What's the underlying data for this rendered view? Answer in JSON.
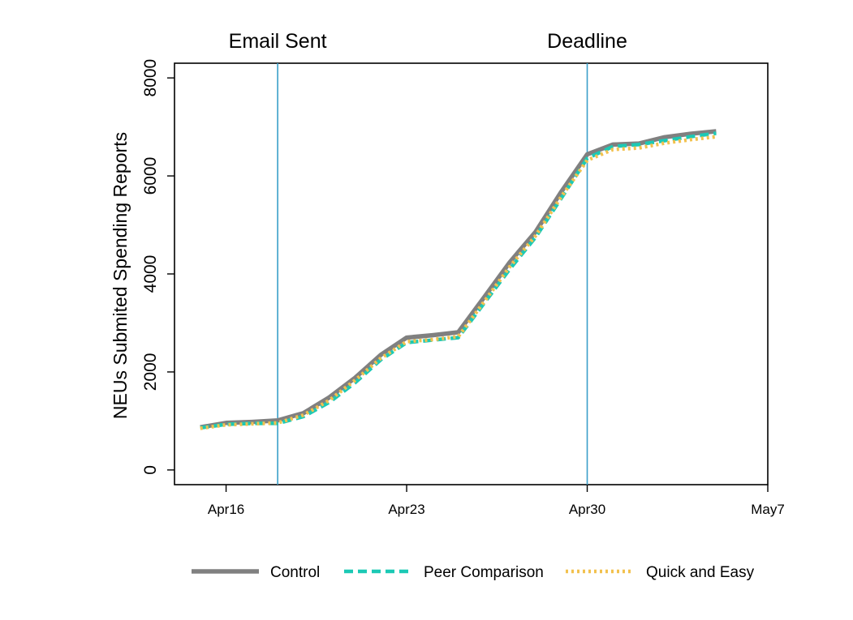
{
  "chart_data": {
    "type": "line",
    "title": "",
    "xlabel": "",
    "ylabel": "NEUs Submited Spending Reports",
    "ylim": [
      -300,
      8300
    ],
    "yticks": [
      0,
      2000,
      4000,
      6000,
      8000
    ],
    "xlim": [
      "2018-04-14",
      "2018-05-07"
    ],
    "xticks": [
      {
        "date": "2018-04-16",
        "label": "Apr16"
      },
      {
        "date": "2018-04-23",
        "label": "Apr23"
      },
      {
        "date": "2018-04-30",
        "label": "Apr30"
      },
      {
        "date": "2018-05-07",
        "label": "May7"
      }
    ],
    "vlines": [
      {
        "date": "2018-04-18",
        "label": "Email Sent",
        "color": "#3a9fc9"
      },
      {
        "date": "2018-04-30",
        "label": "Deadline",
        "color": "#3a9fc9"
      }
    ],
    "x": [
      "2018-04-15",
      "2018-04-16",
      "2018-04-17",
      "2018-04-18",
      "2018-04-19",
      "2018-04-20",
      "2018-04-21",
      "2018-04-22",
      "2018-04-23",
      "2018-04-24",
      "2018-04-25",
      "2018-04-26",
      "2018-04-27",
      "2018-04-28",
      "2018-04-29",
      "2018-04-30",
      "2018-05-01",
      "2018-05-02",
      "2018-05-03",
      "2018-05-04",
      "2018-05-05"
    ],
    "series": [
      {
        "name": "Control",
        "color": "#808080",
        "style": "solid",
        "values": [
          870,
          960,
          980,
          1010,
          1160,
          1480,
          1880,
          2350,
          2700,
          2750,
          2810,
          3520,
          4240,
          4860,
          5680,
          6440,
          6640,
          6660,
          6790,
          6860,
          6910
        ]
      },
      {
        "name": "Peer Comparison",
        "color": "#1cc9b5",
        "style": "dashed",
        "values": [
          860,
          930,
          950,
          950,
          1090,
          1380,
          1780,
          2250,
          2600,
          2650,
          2700,
          3400,
          4100,
          4750,
          5550,
          6360,
          6600,
          6640,
          6720,
          6800,
          6870
        ]
      },
      {
        "name": "Quick and Easy",
        "color": "#f2c14e",
        "style": "dotted",
        "values": [
          850,
          920,
          940,
          960,
          1120,
          1420,
          1830,
          2280,
          2620,
          2660,
          2720,
          3430,
          4150,
          4780,
          5580,
          6320,
          6540,
          6570,
          6670,
          6740,
          6800
        ]
      }
    ],
    "legend_position": "bottom",
    "grid": false
  }
}
